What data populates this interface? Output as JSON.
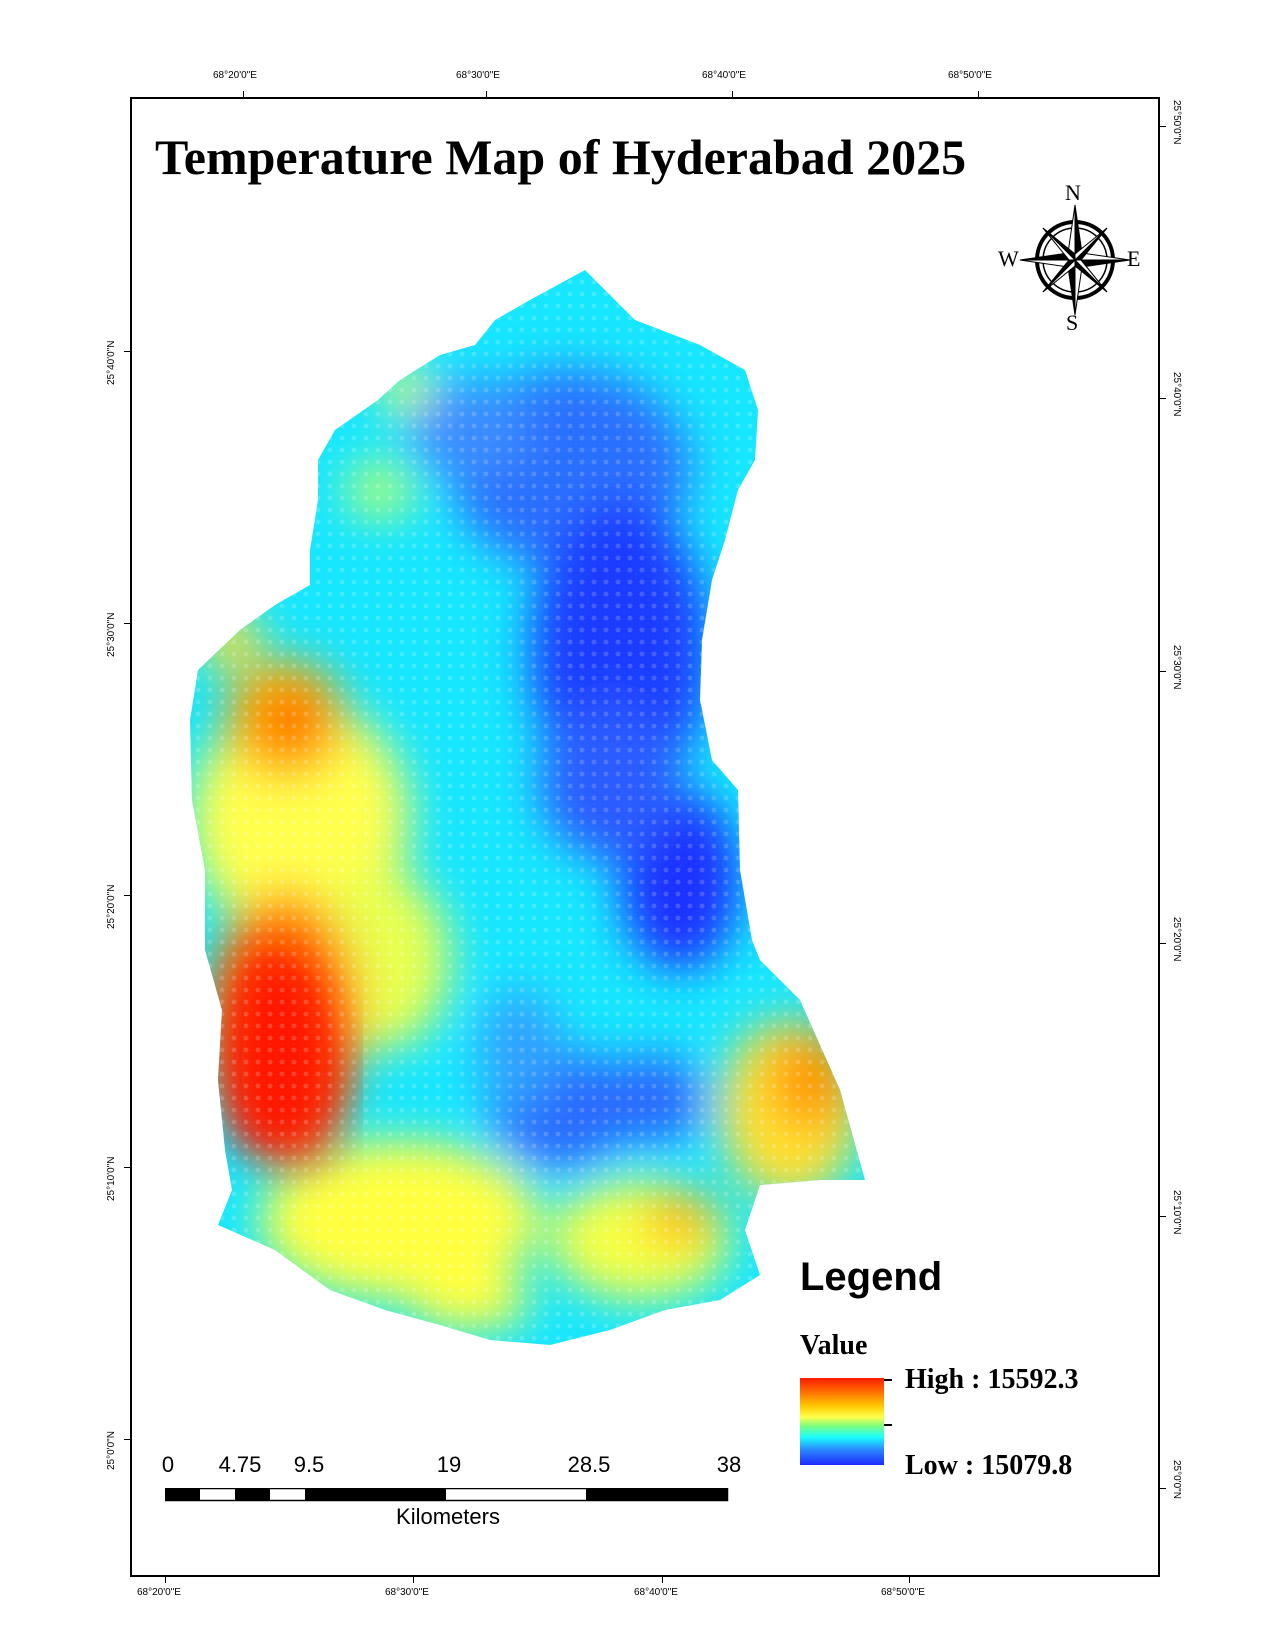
{
  "map": {
    "title": "Temperature Map of Hyderabad 2025",
    "top_longitudes": [
      "68°20'0\"E",
      "68°30'0\"E",
      "68°40'0\"E",
      "68°50'0\"E"
    ],
    "bottom_longitudes": [
      "68°20'0\"E",
      "68°30'0\"E",
      "68°40'0\"E",
      "68°50'0\"E"
    ],
    "left_latitudes": [
      "25°40'0\"N",
      "25°30'0\"N",
      "25°20'0\"N",
      "25°10'0\"N",
      "25°0'0\"N"
    ],
    "right_latitudes": [
      "25°50'0\"N",
      "25°40'0\"N",
      "25°30'0\"N",
      "25°20'0\"N",
      "25°10'0\"N",
      "25°0'0\"N"
    ],
    "colors": {
      "high": "#ff1a00",
      "warm": "#ffc800",
      "mid": "#ffff4d",
      "cool": "#1affff",
      "low": "#1e28ff"
    }
  },
  "compass": {
    "icon": "north-arrow-compass-rose",
    "north": "N",
    "south": "S",
    "east": "E",
    "west": "W"
  },
  "legend": {
    "title": "Legend",
    "field": "Value",
    "high": "High : 15592.3",
    "low": "Low : 15079.8"
  },
  "scale_bar": {
    "labels": [
      "0",
      "4.75",
      "9.5",
      "19",
      "28.5",
      "38"
    ],
    "unit": "Kilometers"
  }
}
